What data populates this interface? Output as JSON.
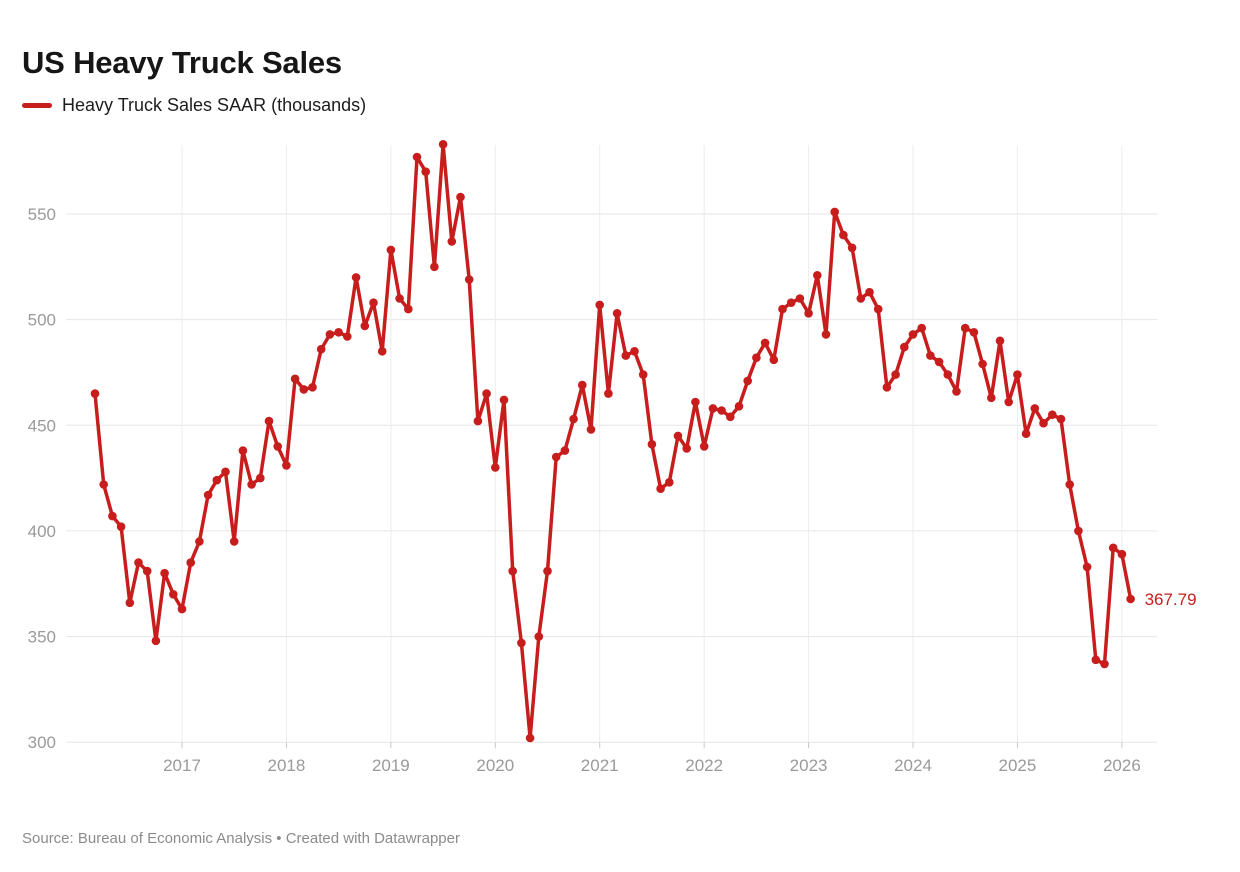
{
  "header": {
    "title": "US Heavy Truck Sales"
  },
  "legend": {
    "label": "Heavy Truck Sales SAAR (thousands)"
  },
  "footer": {
    "source_line": "Source: Bureau of Economic Analysis • Created with Datawrapper"
  },
  "colors": {
    "line": "#c71e1d",
    "title": "#161616",
    "legend_text": "#1d1d1d",
    "axis_label": "#9a9a9a",
    "gridline": "#e6e6e6",
    "x_gridline": "#ececec",
    "axis_tick": "#c9c9c9",
    "source_text": "#8b8b8b",
    "background": "#ffffff"
  },
  "chart_data": {
    "type": "line",
    "title": "US Heavy Truck Sales",
    "series_name": "Heavy Truck Sales SAAR (thousands)",
    "frequency": "monthly",
    "x_start": "2016-03",
    "x_end": "2026-02",
    "x_ticks": [
      2017,
      2018,
      2019,
      2020,
      2021,
      2022,
      2023,
      2024,
      2025,
      2026
    ],
    "y_ticks": [
      550,
      500,
      450,
      400,
      350,
      300
    ],
    "ylim": [
      295,
      585
    ],
    "grid": "on",
    "legend_position": "top-left",
    "markers": "points",
    "last_value_label": "367.79",
    "values": [
      465,
      422,
      407,
      402,
      366,
      385,
      381,
      348,
      380,
      370,
      363,
      385,
      395,
      417,
      424,
      428,
      395,
      438,
      422,
      425,
      452,
      440,
      431,
      472,
      467,
      468,
      486,
      493,
      494,
      492,
      520,
      497,
      508,
      485,
      533,
      510,
      505,
      577,
      570,
      525,
      583,
      537,
      558,
      519,
      452,
      465,
      430,
      462,
      381,
      347,
      302,
      350,
      381,
      435,
      438,
      453,
      469,
      448,
      507,
      465,
      503,
      483,
      485,
      474,
      441,
      420,
      423,
      445,
      439,
      461,
      440,
      458,
      457,
      454,
      459,
      471,
      482,
      489,
      481,
      505,
      508,
      510,
      503,
      521,
      493,
      551,
      540,
      534,
      510,
      513,
      505,
      468,
      474,
      487,
      493,
      496,
      483,
      480,
      474,
      466,
      496,
      494,
      479,
      463,
      490,
      461,
      474,
      446,
      458,
      451,
      455,
      453,
      422,
      400,
      383,
      339,
      337,
      392,
      389,
      367.79
    ]
  }
}
